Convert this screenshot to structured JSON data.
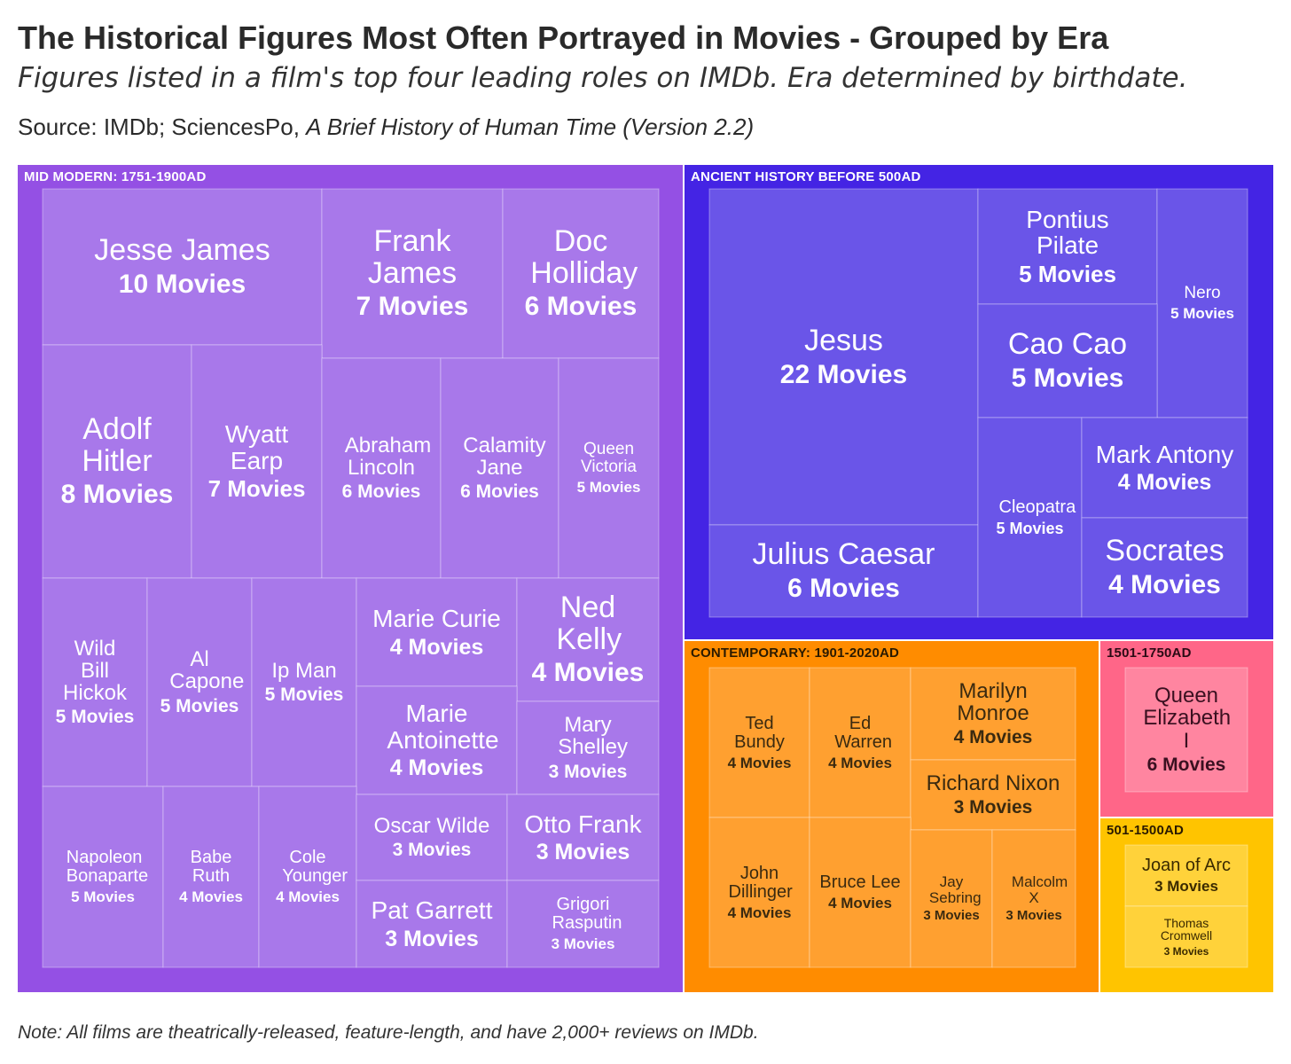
{
  "title": "The Historical Figures Most Often Portrayed in Movies - Grouped by Era",
  "subtitle": "Figures listed in a film's top four leading roles on IMDb. Era determined by birthdate.",
  "source": {
    "prefix": "Source: IMDb; SciencesPo, ",
    "work": "A Brief History of Human Time (Version 2.2)"
  },
  "note": "Note: All films are theatrically-released, feature-length, and have 2,000+ reviews on IMDb.",
  "chart_data": {
    "type": "treemap",
    "value_unit": "Movies",
    "groups": [
      {
        "name": "MID MODERN: 1751-1900AD",
        "color": "#9450e4",
        "cell_color": "#a878ea",
        "text_color": "#ffffff",
        "items": [
          {
            "name": "Jesse James",
            "value": 10,
            "label": "10 Movies"
          },
          {
            "name": "Frank James",
            "value": 7,
            "label": "7 Movies"
          },
          {
            "name": "Doc Holliday",
            "value": 6,
            "label": "6 Movies"
          },
          {
            "name": "Adolf Hitler",
            "value": 8,
            "label": "8 Movies"
          },
          {
            "name": "Wyatt Earp",
            "value": 7,
            "label": "7 Movies"
          },
          {
            "name": "Abraham Lincoln",
            "value": 6,
            "label": "6 Movies"
          },
          {
            "name": "Calamity Jane",
            "value": 6,
            "label": "6 Movies"
          },
          {
            "name": "Queen Victoria",
            "value": 5,
            "label": "5 Movies"
          },
          {
            "name": "Wild Bill Hickok",
            "value": 5,
            "label": "5 Movies"
          },
          {
            "name": "Al Capone",
            "value": 5,
            "label": "5 Movies"
          },
          {
            "name": "Ip Man",
            "value": 5,
            "label": "5 Movies"
          },
          {
            "name": "Marie Curie",
            "value": 4,
            "label": "4 Movies"
          },
          {
            "name": "Ned Kelly",
            "value": 4,
            "label": "4 Movies"
          },
          {
            "name": "Marie Antoinette",
            "value": 4,
            "label": "4 Movies"
          },
          {
            "name": "Mary Shelley",
            "value": 3,
            "label": "3 Movies"
          },
          {
            "name": "Napoleon Bonaparte",
            "value": 5,
            "label": "5 Movies"
          },
          {
            "name": "Babe Ruth",
            "value": 4,
            "label": "4 Movies"
          },
          {
            "name": "Cole Younger",
            "value": 4,
            "label": "4 Movies"
          },
          {
            "name": "Oscar Wilde",
            "value": 3,
            "label": "3 Movies"
          },
          {
            "name": "Otto Frank",
            "value": 3,
            "label": "3 Movies"
          },
          {
            "name": "Pat Garrett",
            "value": 3,
            "label": "3 Movies"
          },
          {
            "name": "Grigori Rasputin",
            "value": 3,
            "label": "3 Movies"
          }
        ]
      },
      {
        "name": "ANCIENT HISTORY BEFORE 500AD",
        "color": "#4424e4",
        "cell_color": "#6a55e8",
        "text_color": "#ffffff",
        "items": [
          {
            "name": "Jesus",
            "value": 22,
            "label": "22 Movies"
          },
          {
            "name": "Pontius Pilate",
            "value": 5,
            "label": "5 Movies"
          },
          {
            "name": "Nero",
            "value": 5,
            "label": "5 Movies"
          },
          {
            "name": "Cao Cao",
            "value": 5,
            "label": "5 Movies"
          },
          {
            "name": "Julius Caesar",
            "value": 6,
            "label": "6 Movies"
          },
          {
            "name": "Cleopatra",
            "value": 5,
            "label": "5 Movies"
          },
          {
            "name": "Mark Antony",
            "value": 4,
            "label": "4 Movies"
          },
          {
            "name": "Socrates",
            "value": 4,
            "label": "4 Movies"
          }
        ]
      },
      {
        "name": "CONTEMPORARY: 1901-2020AD",
        "color": "#ff8c00",
        "cell_color": "#ffa030",
        "text_color": "#3a2a10",
        "items": [
          {
            "name": "Ted Bundy",
            "value": 4,
            "label": "4 Movies"
          },
          {
            "name": "Ed Warren",
            "value": 4,
            "label": "4 Movies"
          },
          {
            "name": "Marilyn Monroe",
            "value": 4,
            "label": "4 Movies"
          },
          {
            "name": "Richard Nixon",
            "value": 3,
            "label": "3 Movies"
          },
          {
            "name": "John Dillinger",
            "value": 4,
            "label": "4 Movies"
          },
          {
            "name": "Bruce Lee",
            "value": 4,
            "label": "4 Movies"
          },
          {
            "name": "Jay Sebring",
            "value": 3,
            "label": "3 Movies"
          },
          {
            "name": "Malcolm X",
            "value": 3,
            "label": "3 Movies"
          }
        ]
      },
      {
        "name": "1501-1750AD",
        "color": "#ff6688",
        "cell_color": "#ff85a0",
        "text_color": "#3a1020",
        "items": [
          {
            "name": "Queen Elizabeth I",
            "value": 6,
            "label": "6 Movies"
          }
        ]
      },
      {
        "name": "501-1500AD",
        "color": "#ffc400",
        "cell_color": "#ffd23a",
        "text_color": "#3a2a00",
        "items": [
          {
            "name": "Joan of Arc",
            "value": 3,
            "label": "3 Movies"
          },
          {
            "name": "Thomas Cromwell",
            "value": 3,
            "label": "3 Movies"
          }
        ]
      }
    ]
  }
}
